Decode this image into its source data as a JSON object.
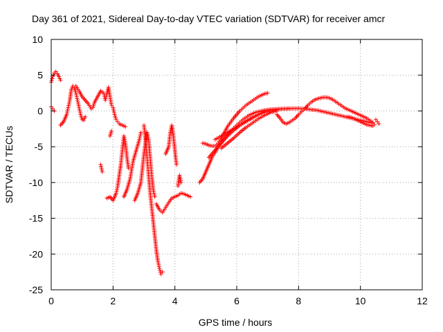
{
  "chart_data": {
    "type": "scatter",
    "title": "Day 361 of 2021, Sidereal Day-to-day VTEC variation (SDTVAR) for receiver amcr",
    "xlabel": "GPS time / hours",
    "ylabel": "SDTVAR / TECUs",
    "xlim": [
      0,
      12
    ],
    "ylim": [
      -25,
      10
    ],
    "xticks": [
      0,
      2,
      4,
      6,
      8,
      10,
      12
    ],
    "xtick_labels": [
      "0",
      "2",
      "4",
      "6",
      "8",
      "10",
      "12"
    ],
    "yticks": [
      -25,
      -20,
      -15,
      -10,
      -5,
      0,
      5,
      10
    ],
    "ytick_labels": [
      "-25",
      "-20",
      "-15",
      "-10",
      "-5",
      "0",
      "5",
      "10"
    ],
    "grid": true,
    "marker": "+",
    "color": "#ff0000",
    "series": [
      {
        "name": "amcr",
        "tracks": [
          [
            [
              0.0,
              0.6
            ],
            [
              0.05,
              0.3
            ],
            [
              0.1,
              0.0
            ]
          ],
          [
            [
              0.0,
              4.0
            ],
            [
              0.05,
              4.8
            ],
            [
              0.1,
              5.3
            ],
            [
              0.15,
              5.5
            ],
            [
              0.2,
              5.2
            ],
            [
              0.25,
              4.8
            ],
            [
              0.3,
              4.3
            ]
          ],
          [
            [
              0.3,
              -2.0
            ],
            [
              0.4,
              -1.5
            ],
            [
              0.5,
              -0.5
            ],
            [
              0.55,
              0.5
            ],
            [
              0.6,
              1.5
            ],
            [
              0.65,
              3.0
            ],
            [
              0.7,
              3.5
            ],
            [
              0.75,
              3.2
            ],
            [
              0.8,
              2.5
            ],
            [
              0.85,
              1.5
            ],
            [
              0.9,
              0.5
            ],
            [
              0.95,
              -0.5
            ],
            [
              1.0,
              -1.2
            ],
            [
              1.05,
              -1.3
            ],
            [
              1.1,
              -0.8
            ]
          ],
          [
            [
              0.8,
              3.5
            ],
            [
              0.9,
              2.8
            ],
            [
              1.0,
              2.0
            ],
            [
              1.1,
              1.5
            ],
            [
              1.2,
              1.0
            ],
            [
              1.3,
              0.3
            ],
            [
              1.35,
              0.5
            ],
            [
              1.4,
              1.2
            ],
            [
              1.5,
              2.0
            ],
            [
              1.6,
              2.8
            ],
            [
              1.7,
              2.5
            ],
            [
              1.75,
              1.5
            ],
            [
              1.8,
              2.5
            ],
            [
              1.85,
              3.3
            ],
            [
              1.9,
              2.0
            ],
            [
              1.95,
              0.8
            ],
            [
              2.0,
              0.5
            ],
            [
              2.05,
              -0.5
            ],
            [
              2.1,
              -1.2
            ],
            [
              2.15,
              -1.5
            ],
            [
              2.2,
              -1.8
            ],
            [
              2.3,
              -2.0
            ],
            [
              2.4,
              -2.2
            ]
          ],
          [
            [
              1.6,
              -7.5
            ],
            [
              1.65,
              -8.5
            ]
          ],
          [
            [
              1.8,
              -12.2
            ],
            [
              1.9,
              -12.0
            ],
            [
              2.0,
              -12.5
            ],
            [
              2.1,
              -11.5
            ],
            [
              2.15,
              -10.5
            ],
            [
              2.2,
              -9.0
            ],
            [
              2.25,
              -7.5
            ],
            [
              2.3,
              -5.5
            ],
            [
              2.35,
              -3.5
            ],
            [
              2.4,
              -4.5
            ],
            [
              2.45,
              -6.5
            ],
            [
              2.5,
              -8.0
            ]
          ],
          [
            [
              1.9,
              -3.5
            ],
            [
              1.95,
              -2.8
            ]
          ],
          [
            [
              2.35,
              -12.0
            ],
            [
              2.45,
              -11.0
            ],
            [
              2.55,
              -9.5
            ],
            [
              2.65,
              -7.0
            ],
            [
              2.75,
              -5.5
            ],
            [
              2.85,
              -4.0
            ],
            [
              2.9,
              -3.0
            ]
          ],
          [
            [
              2.7,
              -12.5
            ],
            [
              2.8,
              -11.5
            ],
            [
              2.9,
              -10.0
            ],
            [
              2.95,
              -8.0
            ],
            [
              3.0,
              -6.0
            ],
            [
              3.05,
              -4.5
            ],
            [
              3.1,
              -3.0
            ],
            [
              3.15,
              -4.0
            ],
            [
              3.2,
              -6.5
            ],
            [
              3.25,
              -9.0
            ],
            [
              3.3,
              -11.0
            ],
            [
              3.35,
              -12.0
            ]
          ],
          [
            [
              3.0,
              -2.0
            ],
            [
              3.05,
              -4.0
            ],
            [
              3.1,
              -6.5
            ],
            [
              3.15,
              -9.0
            ],
            [
              3.2,
              -11.5
            ],
            [
              3.25,
              -13.5
            ],
            [
              3.3,
              -15.5
            ],
            [
              3.35,
              -17.5
            ],
            [
              3.4,
              -19.5
            ],
            [
              3.45,
              -21.0
            ],
            [
              3.5,
              -22.0
            ],
            [
              3.55,
              -22.8
            ],
            [
              3.6,
              -22.5
            ]
          ],
          [
            [
              3.4,
              -13.0
            ],
            [
              3.5,
              -13.8
            ],
            [
              3.6,
              -14.2
            ],
            [
              3.7,
              -13.5
            ],
            [
              3.8,
              -12.8
            ],
            [
              3.9,
              -12.2
            ],
            [
              4.0,
              -12.0
            ],
            [
              4.1,
              -11.8
            ],
            [
              4.2,
              -11.5
            ],
            [
              4.3,
              -11.6
            ],
            [
              4.4,
              -11.8
            ],
            [
              4.5,
              -12.0
            ]
          ],
          [
            [
              3.7,
              -6.0
            ],
            [
              3.8,
              -5.0
            ],
            [
              3.85,
              -3.0
            ],
            [
              3.9,
              -2.0
            ],
            [
              3.95,
              -3.5
            ],
            [
              4.0,
              -5.5
            ],
            [
              4.05,
              -7.5
            ]
          ],
          [
            [
              4.1,
              -10.5
            ],
            [
              4.15,
              -9.0
            ],
            [
              4.2,
              -10.0
            ]
          ],
          [
            [
              4.8,
              -10.0
            ],
            [
              4.9,
              -9.5
            ],
            [
              5.0,
              -8.5
            ],
            [
              5.1,
              -7.5
            ],
            [
              5.2,
              -6.5
            ],
            [
              5.3,
              -5.8
            ],
            [
              5.4,
              -5.0
            ],
            [
              5.5,
              -4.3
            ],
            [
              5.6,
              -3.8
            ],
            [
              5.7,
              -3.3
            ],
            [
              5.8,
              -2.8
            ],
            [
              5.9,
              -2.4
            ],
            [
              6.0,
              -2.0
            ],
            [
              6.1,
              -1.6
            ],
            [
              6.2,
              -1.2
            ],
            [
              6.3,
              -0.9
            ],
            [
              6.4,
              -0.6
            ],
            [
              6.5,
              -0.4
            ],
            [
              6.6,
              -0.2
            ],
            [
              6.7,
              -0.1
            ],
            [
              6.8,
              0.0
            ],
            [
              6.9,
              0.1
            ],
            [
              7.0,
              0.15
            ],
            [
              7.2,
              0.25
            ],
            [
              7.4,
              0.3
            ],
            [
              7.6,
              0.3
            ],
            [
              7.8,
              0.35
            ],
            [
              8.0,
              0.35
            ],
            [
              8.2,
              0.3
            ],
            [
              8.4,
              0.2
            ],
            [
              8.6,
              0.1
            ],
            [
              8.8,
              -0.1
            ],
            [
              9.0,
              -0.3
            ],
            [
              9.2,
              -0.5
            ],
            [
              9.4,
              -0.7
            ],
            [
              9.6,
              -0.9
            ],
            [
              9.8,
              -1.1
            ],
            [
              10.0,
              -1.3
            ],
            [
              10.2,
              -1.5
            ],
            [
              10.4,
              -1.7
            ]
          ],
          [
            [
              4.9,
              -4.5
            ],
            [
              5.0,
              -4.6
            ],
            [
              5.1,
              -4.8
            ],
            [
              5.2,
              -4.9
            ],
            [
              5.3,
              -4.9
            ],
            [
              5.4,
              -4.5
            ],
            [
              5.5,
              -3.8
            ],
            [
              5.6,
              -3.0
            ],
            [
              5.7,
              -2.2
            ],
            [
              5.8,
              -1.6
            ],
            [
              5.9,
              -1.0
            ],
            [
              6.0,
              -0.5
            ],
            [
              6.1,
              0.0
            ],
            [
              6.2,
              0.4
            ],
            [
              6.3,
              0.8
            ],
            [
              6.4,
              1.1
            ],
            [
              6.5,
              1.4
            ],
            [
              6.6,
              1.7
            ],
            [
              6.7,
              2.0
            ],
            [
              6.8,
              2.2
            ],
            [
              6.9,
              2.4
            ],
            [
              7.0,
              2.5
            ]
          ],
          [
            [
              5.1,
              -6.5
            ],
            [
              5.3,
              -5.5
            ],
            [
              5.5,
              -4.5
            ],
            [
              5.7,
              -3.5
            ],
            [
              5.9,
              -2.7
            ],
            [
              6.1,
              -2.0
            ],
            [
              6.3,
              -1.4
            ],
            [
              6.5,
              -0.9
            ],
            [
              6.7,
              -0.5
            ],
            [
              6.9,
              -0.2
            ],
            [
              7.1,
              0.0
            ],
            [
              7.3,
              0.2
            ],
            [
              7.5,
              0.3
            ],
            [
              7.7,
              0.35
            ]
          ],
          [
            [
              5.3,
              -4.0
            ],
            [
              5.5,
              -3.5
            ],
            [
              5.7,
              -3.0
            ],
            [
              5.9,
              -2.5
            ],
            [
              6.1,
              -2.0
            ],
            [
              6.3,
              -1.5
            ],
            [
              6.5,
              -1.0
            ],
            [
              6.7,
              -0.5
            ],
            [
              6.9,
              0.0
            ],
            [
              7.1,
              0.2
            ]
          ],
          [
            [
              5.5,
              -5.2
            ],
            [
              5.7,
              -4.5
            ],
            [
              5.9,
              -3.8
            ],
            [
              6.1,
              -3.0
            ],
            [
              6.3,
              -2.3
            ],
            [
              6.5,
              -1.7
            ],
            [
              6.7,
              -1.1
            ],
            [
              6.9,
              -0.6
            ],
            [
              7.1,
              -0.2
            ],
            [
              7.3,
              0.0
            ]
          ],
          [
            [
              7.3,
              -0.5
            ],
            [
              7.4,
              -1.0
            ],
            [
              7.5,
              -1.6
            ],
            [
              7.6,
              -1.8
            ],
            [
              7.7,
              -1.6
            ],
            [
              7.8,
              -1.3
            ],
            [
              7.9,
              -1.0
            ],
            [
              8.0,
              -0.5
            ],
            [
              8.1,
              -0.1
            ],
            [
              8.2,
              0.3
            ],
            [
              8.3,
              0.8
            ],
            [
              8.4,
              1.2
            ],
            [
              8.5,
              1.5
            ],
            [
              8.6,
              1.7
            ],
            [
              8.7,
              1.8
            ],
            [
              8.8,
              1.9
            ],
            [
              8.9,
              1.9
            ],
            [
              9.0,
              1.8
            ],
            [
              9.1,
              1.6
            ],
            [
              9.2,
              1.3
            ],
            [
              9.3,
              1.0
            ],
            [
              9.4,
              0.7
            ],
            [
              9.5,
              0.4
            ],
            [
              9.6,
              0.2
            ],
            [
              9.7,
              0.0
            ],
            [
              9.8,
              -0.2
            ],
            [
              9.9,
              -0.4
            ],
            [
              10.0,
              -0.6
            ],
            [
              10.1,
              -0.8
            ],
            [
              10.2,
              -1.0
            ],
            [
              10.3,
              -1.3
            ],
            [
              10.4,
              -1.6
            ],
            [
              10.45,
              -1.9
            ]
          ],
          [
            [
              9.6,
              -0.8
            ],
            [
              9.7,
              -0.9
            ],
            [
              9.8,
              -1.1
            ],
            [
              9.9,
              -1.3
            ],
            [
              10.0,
              -1.5
            ],
            [
              10.1,
              -1.7
            ],
            [
              10.2,
              -1.9
            ],
            [
              10.3,
              -2.0
            ],
            [
              10.4,
              -2.1
            ]
          ],
          [
            [
              10.5,
              -1.2
            ],
            [
              10.55,
              -1.5
            ],
            [
              10.6,
              -1.8
            ]
          ]
        ]
      }
    ]
  }
}
